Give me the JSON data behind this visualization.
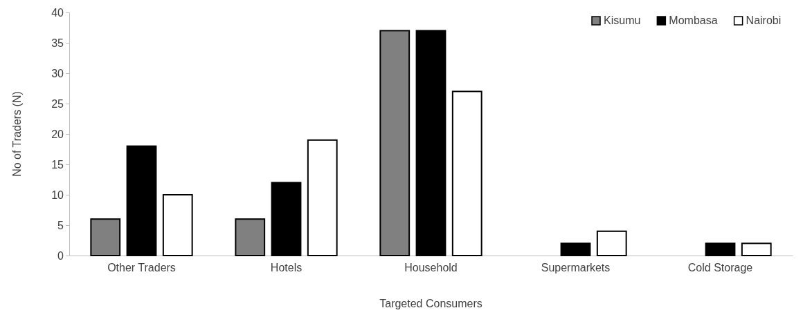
{
  "chart_data": {
    "type": "bar",
    "xlabel": "Targeted Consumers",
    "ylabel": "No of Traders (N)",
    "categories": [
      "Other Traders",
      "Hotels",
      "Household",
      "Supermarkets",
      "Cold Storage"
    ],
    "series": [
      {
        "name": "Kisumu",
        "color": "#808080",
        "values": [
          6,
          6,
          37,
          0,
          0
        ]
      },
      {
        "name": "Mombasa",
        "color": "#000000",
        "values": [
          18,
          12,
          37,
          2,
          2
        ]
      },
      {
        "name": "Nairobi",
        "color": "#ffffff",
        "values": [
          10,
          19,
          27,
          4,
          2
        ]
      }
    ],
    "ylim": [
      0,
      40
    ],
    "yticks": [
      0,
      5,
      10,
      15,
      20,
      25,
      30,
      35,
      40
    ],
    "legend": "top right"
  }
}
